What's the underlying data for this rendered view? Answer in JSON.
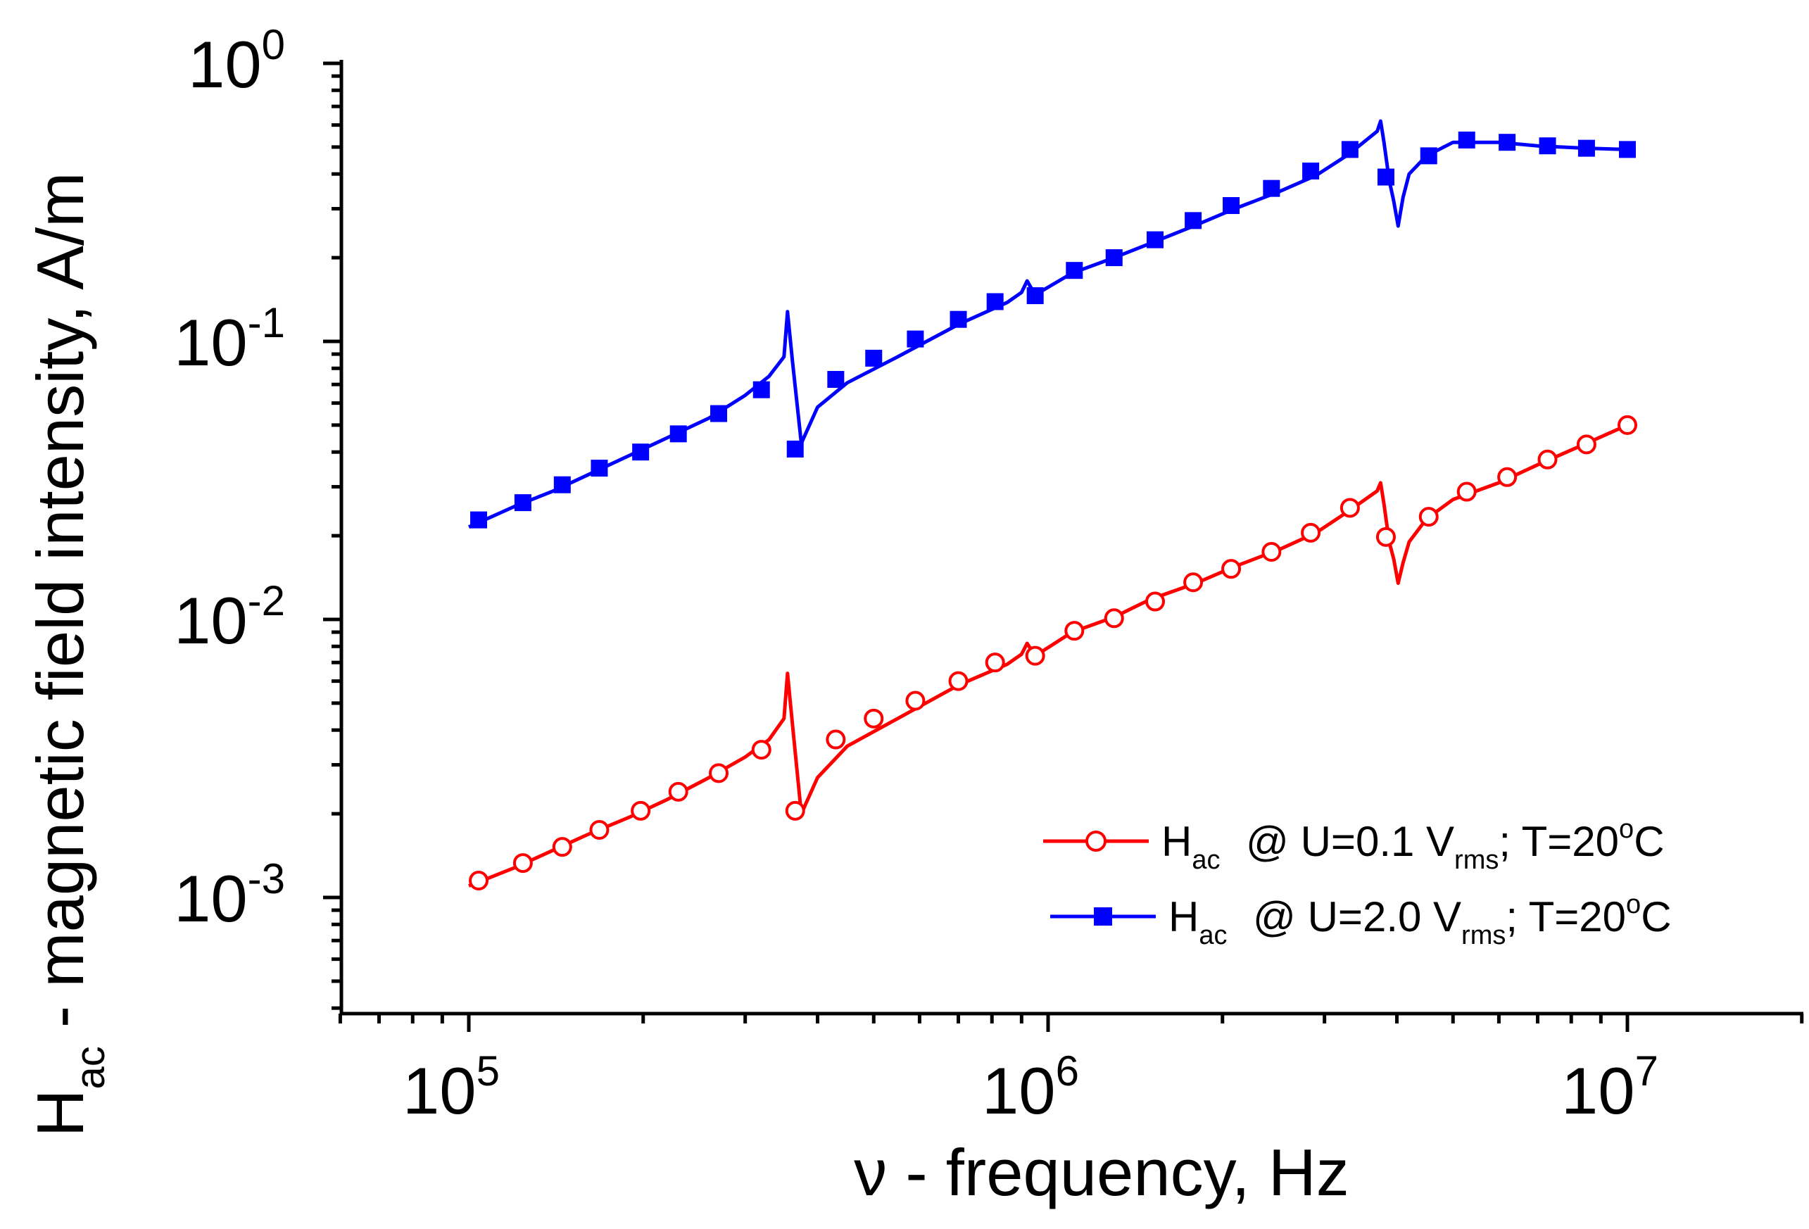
{
  "chart_data": {
    "type": "line",
    "scale": {
      "x": "log",
      "y": "log"
    },
    "xlim": [
      60000,
      20000000
    ],
    "ylim": [
      0.0004,
      1
    ],
    "x_ticks": [
      {
        "value": 100000,
        "base": "10",
        "exp": "5"
      },
      {
        "value": 1000000,
        "base": "10",
        "exp": "6"
      },
      {
        "value": 10000000,
        "base": "10",
        "exp": "7"
      }
    ],
    "y_ticks": [
      {
        "value": 0.001,
        "base": "10",
        "exp": "-3"
      },
      {
        "value": 0.01,
        "base": "10",
        "exp": "-2"
      },
      {
        "value": 0.1,
        "base": "10",
        "exp": "-1"
      },
      {
        "value": 1,
        "base": "10",
        "exp": "0"
      }
    ],
    "xlabel": {
      "text": "ν - frequency, Hz"
    },
    "ylabel": {
      "main": "H",
      "sub": "ac",
      "rest": " - magnetic field intensity, A/m"
    },
    "legend_position": "bottom-right",
    "series": [
      {
        "name": "Hac @ U=0.1 Vrms; T=20oC",
        "legend": {
          "h": "H",
          "h_sub": "ac",
          "pre": "@ U=0.1 V",
          "v_sub": "rms",
          "mid": "; T=20",
          "sup": "o",
          "post": "C"
        },
        "color": "#ff0000",
        "marker": "open-circle",
        "line_x": [
          100000,
          120000,
          140000,
          160000,
          190000,
          220000,
          260000,
          300000,
          330000,
          350000,
          355000,
          362000,
          375000,
          400000,
          450000,
          550000,
          700000,
          850000,
          900000,
          920000,
          950000,
          1100000,
          1300000,
          1500000,
          1800000,
          2100000,
          2500000,
          2900000,
          3300000,
          3700000,
          3750000,
          3800000,
          3880000,
          3950000,
          4020000,
          4100000,
          4200000,
          4500000,
          5000000,
          6000000,
          7000000,
          8500000,
          10000000
        ],
        "line_y": [
          0.0011,
          0.00128,
          0.00148,
          0.00168,
          0.00195,
          0.00225,
          0.0027,
          0.0032,
          0.0037,
          0.0044,
          0.0064,
          0.0042,
          0.002,
          0.0027,
          0.0035,
          0.0044,
          0.0058,
          0.0069,
          0.0075,
          0.0082,
          0.0074,
          0.009,
          0.0102,
          0.0118,
          0.0135,
          0.0155,
          0.0178,
          0.0205,
          0.0245,
          0.029,
          0.031,
          0.026,
          0.019,
          0.0165,
          0.0135,
          0.016,
          0.019,
          0.023,
          0.027,
          0.031,
          0.036,
          0.043,
          0.05
        ],
        "marker_x": [
          104000,
          124000,
          145000,
          168000,
          198000,
          230000,
          270000,
          320000,
          366000,
          430000,
          500000,
          590000,
          700000,
          810000,
          950000,
          1110000,
          1300000,
          1530000,
          1780000,
          2070000,
          2430000,
          2840000,
          3320000,
          3830000,
          4540000,
          5280000,
          6200000,
          7280000,
          8500000,
          10000000
        ],
        "marker_y": [
          0.00115,
          0.00133,
          0.00152,
          0.00175,
          0.00205,
          0.0024,
          0.0028,
          0.0034,
          0.00205,
          0.0037,
          0.0044,
          0.0051,
          0.006,
          0.007,
          0.0074,
          0.0091,
          0.0101,
          0.0116,
          0.0136,
          0.0152,
          0.0175,
          0.0205,
          0.0252,
          0.0198,
          0.0234,
          0.0288,
          0.0325,
          0.0376,
          0.0426,
          0.05
        ]
      },
      {
        "name": "Hac @ U=2.0 Vrms; T=20oC",
        "legend": {
          "h": "H",
          "h_sub": "ac",
          "pre": "@ U=2.0 V",
          "v_sub": "rms",
          "mid": "; T=20",
          "sup": "o",
          "post": "C"
        },
        "color": "#0000ff",
        "marker": "filled-square",
        "line_x": [
          100000,
          120000,
          140000,
          160000,
          190000,
          220000,
          260000,
          300000,
          330000,
          350000,
          355000,
          362000,
          375000,
          400000,
          450000,
          550000,
          700000,
          850000,
          900000,
          920000,
          950000,
          1100000,
          1300000,
          1500000,
          1800000,
          2100000,
          2500000,
          2900000,
          3300000,
          3700000,
          3750000,
          3800000,
          3880000,
          3950000,
          4020000,
          4100000,
          4200000,
          4500000,
          5000000,
          6000000,
          7000000,
          8500000,
          10000000
        ],
        "line_y": [
          0.0215,
          0.0255,
          0.029,
          0.033,
          0.039,
          0.045,
          0.053,
          0.064,
          0.075,
          0.088,
          0.128,
          0.085,
          0.043,
          0.058,
          0.071,
          0.088,
          0.115,
          0.138,
          0.15,
          0.165,
          0.147,
          0.176,
          0.2,
          0.225,
          0.262,
          0.3,
          0.345,
          0.395,
          0.47,
          0.57,
          0.62,
          0.52,
          0.38,
          0.32,
          0.26,
          0.33,
          0.4,
          0.465,
          0.52,
          0.52,
          0.505,
          0.495,
          0.49
        ],
        "marker_x": [
          104000,
          124000,
          145000,
          168000,
          198000,
          230000,
          270000,
          320000,
          366000,
          430000,
          500000,
          590000,
          700000,
          810000,
          950000,
          1110000,
          1300000,
          1530000,
          1780000,
          2070000,
          2430000,
          2840000,
          3320000,
          3830000,
          4540000,
          5280000,
          6200000,
          7280000,
          8500000,
          10000000
        ],
        "marker_y": [
          0.0228,
          0.0263,
          0.0305,
          0.035,
          0.04,
          0.0465,
          0.055,
          0.067,
          0.041,
          0.073,
          0.087,
          0.102,
          0.12,
          0.139,
          0.146,
          0.18,
          0.2,
          0.232,
          0.272,
          0.308,
          0.355,
          0.41,
          0.49,
          0.39,
          0.465,
          0.53,
          0.52,
          0.505,
          0.495,
          0.49
        ]
      }
    ]
  }
}
